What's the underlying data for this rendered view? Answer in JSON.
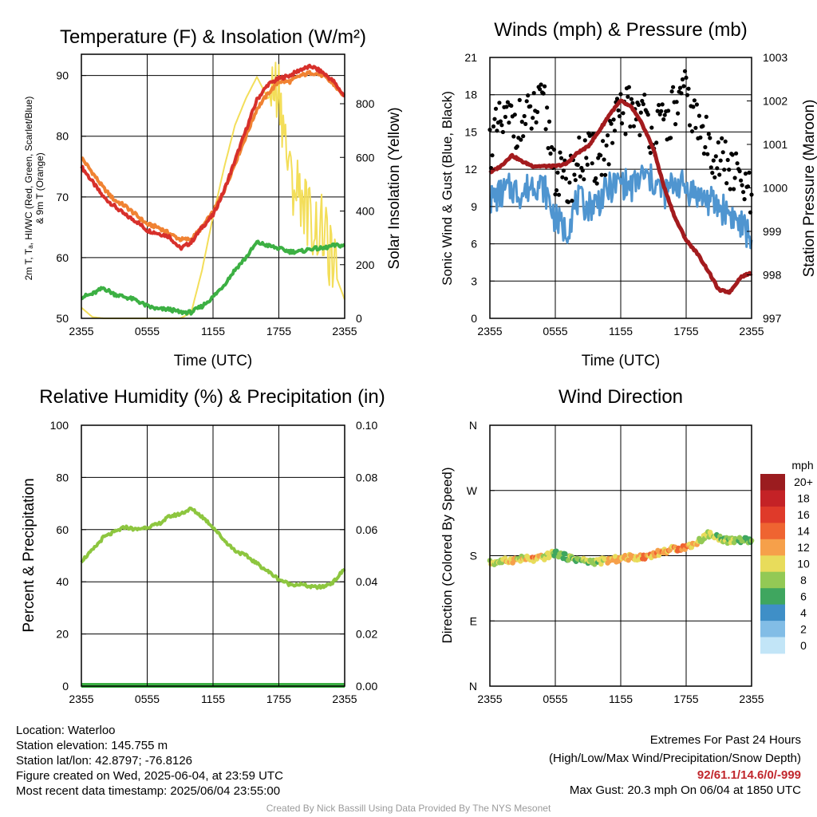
{
  "panels": {
    "temperature": {
      "title": "Temperature (F) & Insolation (W/m²)",
      "ylabel_line1": "2m T, Tₐ, HI/WC (Red, Green, Scarlet/Blue)",
      "ylabel_line2": "& 9m T (Orange)",
      "ylabel_right": "Solar Insolation (Yellow)",
      "xlabel": "Time (UTC)"
    },
    "winds": {
      "title": "Winds (mph) & Pressure (mb)",
      "ylabel": "Sonic Wind & Gust (Blue, Black)",
      "ylabel_right": "Station Pressure (Maroon)",
      "xlabel": "Time (UTC)"
    },
    "humidity": {
      "title": "Relative Humidity (%) & Precipitation (in)",
      "ylabel": "Percent & Precipitation"
    },
    "direction": {
      "title": "Wind Direction",
      "ylabel": "Direction (Colored By Speed)",
      "colorbar_unit": "mph",
      "colorbar_labels": [
        "20+",
        "18",
        "16",
        "14",
        "12",
        "10",
        "8",
        "6",
        "4",
        "2",
        "0"
      ],
      "colorbar_colors": [
        "#9b1c1f",
        "#c42226",
        "#df3a2a",
        "#ef6431",
        "#f6a04a",
        "#e8dc5b",
        "#93c955",
        "#3fa65f",
        "#3f8fc7",
        "#82bde6",
        "#c2e5f7"
      ]
    }
  },
  "station": {
    "location": "Location: Waterloo",
    "elevation": "Station elevation: 145.755 m",
    "latlon": "Station lat/lon: 42.8797; -76.8126",
    "created": "Figure created on Wed, 2025-06-04, at 23:59 UTC",
    "recent": "Most recent data timestamp: 2025/06/04 23:55:00"
  },
  "extremes": {
    "heading": "Extremes For Past 24 Hours",
    "legend": "(High/Low/Max Wind/Precipitation/Snow Depth)",
    "values": "92/61.1/14.6/0/-999",
    "gust": "Max Gust: 20.3 mph On 06/04 at 1850 UTC"
  },
  "credit": "Created By Nick Bassill Using Data Provided By The NYS Mesonet",
  "chart_data": [
    {
      "type": "line",
      "title": "Temperature (F) & Insolation (W/m²)",
      "xlabel": "Time (UTC)",
      "ylabel": "2m T, Tₐ, HI/WC (Red, Green, Scarlet/Blue) & 9m T (Orange)",
      "ylabel_right": "Solar Insolation (Yellow)",
      "x_ticks": [
        "2355",
        "0555",
        "1155",
        "1755",
        "2355"
      ],
      "y_ticks": [
        50,
        60,
        70,
        80,
        90
      ],
      "y_right_ticks": [
        0,
        200,
        400,
        600,
        800
      ],
      "ylim": [
        50,
        93.5
      ],
      "ylim_right": [
        0,
        800
      ],
      "x": [
        0,
        1,
        2,
        3,
        4,
        5,
        6,
        7,
        8,
        9,
        10,
        11,
        12,
        13,
        14,
        15,
        16,
        17,
        18,
        19,
        20,
        21,
        22,
        23,
        24
      ],
      "series": [
        {
          "color": "#d7302b",
          "axis": "left",
          "values": [
            75.0,
            72.5,
            70.0,
            68.5,
            67.0,
            66.0,
            64.5,
            64.0,
            63.5,
            61.5,
            62.5,
            65.0,
            67.0,
            71.0,
            76.0,
            81.0,
            86.0,
            88.5,
            89.5,
            90.0,
            91.0,
            91.5,
            90.5,
            89.0,
            86.5
          ]
        },
        {
          "color": "#f08232",
          "axis": "left",
          "values": [
            76.5,
            74.0,
            71.5,
            69.5,
            68.5,
            67.0,
            65.5,
            65.0,
            64.0,
            63.0,
            63.0,
            65.0,
            67.5,
            71.0,
            75.5,
            80.0,
            84.5,
            87.0,
            89.0,
            89.0,
            90.0,
            90.5,
            90.0,
            88.5,
            86.5
          ]
        },
        {
          "color": "#3cb043",
          "axis": "left",
          "values": [
            53.5,
            54.0,
            55.0,
            54.0,
            53.5,
            53.0,
            52.0,
            51.5,
            51.5,
            51.0,
            51.0,
            52.0,
            53.5,
            55.5,
            58.0,
            60.0,
            62.5,
            62.0,
            61.5,
            61.0,
            61.0,
            61.5,
            61.5,
            62.0,
            62.0
          ]
        },
        {
          "color": "#f3de5a",
          "axis": "right",
          "values": [
            40,
            5,
            0,
            0,
            0,
            0,
            0,
            0,
            0,
            0,
            20,
            180,
            380,
            560,
            720,
            820,
            900,
            820,
            870,
            520,
            470,
            350,
            330,
            180,
            70
          ]
        }
      ]
    },
    {
      "type": "line",
      "title": "Winds (mph) & Pressure (mb)",
      "xlabel": "Time (UTC)",
      "ylabel": "Sonic Wind & Gust (Blue, Black)",
      "ylabel_right": "Station Pressure (Maroon)",
      "x_ticks": [
        "2355",
        "0555",
        "1155",
        "1755",
        "2355"
      ],
      "y_ticks": [
        0,
        3,
        6,
        9,
        12,
        15,
        18,
        21
      ],
      "y_right_ticks": [
        997,
        998,
        999,
        1000,
        1001,
        1002,
        1003
      ],
      "ylim": [
        0,
        21
      ],
      "ylim_right": [
        997,
        1003
      ],
      "x": [
        0,
        1,
        2,
        3,
        4,
        5,
        6,
        7,
        8,
        9,
        10,
        11,
        12,
        13,
        14,
        15,
        16,
        17,
        18,
        19,
        20,
        21,
        22,
        23,
        24
      ],
      "series": [
        {
          "color": "#4f95d0",
          "axis": "left",
          "style": "line",
          "values": [
            9.5,
            10.0,
            10.5,
            10.0,
            11.0,
            10.5,
            8.0,
            7.0,
            9.5,
            9.0,
            9.5,
            10.5,
            11.0,
            10.5,
            11.5,
            11.0,
            10.0,
            11.0,
            10.5,
            10.0,
            9.5,
            9.0,
            8.5,
            7.5,
            6.5
          ]
        },
        {
          "color": "#000000",
          "axis": "left",
          "style": "dots",
          "values": [
            14.0,
            15.5,
            16.0,
            15.5,
            16.5,
            17.0,
            12.0,
            10.5,
            12.5,
            13.0,
            12.5,
            14.0,
            16.5,
            17.0,
            16.5,
            15.0,
            15.5,
            17.0,
            18.0,
            15.5,
            14.0,
            13.0,
            12.0,
            11.0,
            9.5
          ]
        },
        {
          "color": "#a31b1e",
          "axis": "right",
          "style": "line",
          "values": [
            1000.35,
            1000.5,
            1000.75,
            1000.6,
            1000.5,
            1000.5,
            1000.5,
            1000.55,
            1000.8,
            1000.95,
            1001.3,
            1001.7,
            1002.0,
            1001.85,
            1001.45,
            1000.9,
            1000.0,
            999.3,
            998.8,
            998.5,
            998.1,
            997.65,
            997.6,
            997.95,
            998.05
          ]
        }
      ]
    },
    {
      "type": "line",
      "title": "Relative Humidity (%) & Precipitation (in)",
      "ylabel": "Percent & Precipitation",
      "x_ticks": [
        "2355",
        "0555",
        "1155",
        "1755",
        "2355"
      ],
      "y_ticks": [
        0,
        20,
        40,
        60,
        80,
        100
      ],
      "y_right_ticks": [
        "0.00",
        "0.02",
        "0.04",
        "0.06",
        "0.08",
        "0.10"
      ],
      "ylim": [
        0,
        100
      ],
      "ylim_right": [
        0,
        0.1
      ],
      "x": [
        0,
        1,
        2,
        3,
        4,
        5,
        6,
        7,
        8,
        9,
        10,
        11,
        12,
        13,
        14,
        15,
        16,
        17,
        18,
        19,
        20,
        21,
        22,
        23,
        24
      ],
      "series": [
        {
          "color": "#8dc63f",
          "axis": "left",
          "values": [
            48,
            52,
            57,
            59,
            61,
            60,
            61,
            62,
            65,
            66,
            68,
            65,
            61,
            56,
            52,
            50,
            47,
            44,
            41,
            39,
            39,
            38,
            38,
            40,
            45
          ]
        },
        {
          "color": "#3cb043",
          "axis": "right",
          "values": [
            0,
            0,
            0,
            0,
            0,
            0,
            0,
            0,
            0,
            0,
            0,
            0,
            0,
            0,
            0,
            0,
            0,
            0,
            0,
            0,
            0,
            0,
            0,
            0,
            0
          ]
        }
      ]
    },
    {
      "type": "scatter",
      "title": "Wind Direction",
      "ylabel": "Direction (Colored By Speed)",
      "x_ticks": [
        "2355",
        "0555",
        "1155",
        "1755",
        "2355"
      ],
      "y_ticks": [
        "N",
        "E",
        "S",
        "W",
        "N"
      ],
      "ylim": [
        0,
        360
      ],
      "x": [
        0,
        1,
        2,
        3,
        4,
        5,
        6,
        7,
        8,
        9,
        10,
        11,
        12,
        13,
        14,
        15,
        16,
        17,
        18,
        19,
        20,
        21,
        22,
        23,
        24
      ],
      "directions": [
        170,
        172,
        174,
        176,
        175,
        178,
        184,
        178,
        175,
        172,
        172,
        174,
        176,
        178,
        178,
        182,
        186,
        190,
        192,
        198,
        210,
        205,
        200,
        202,
        200
      ],
      "speeds": [
        9,
        10,
        11,
        10,
        12,
        10,
        7,
        6,
        9,
        8,
        9,
        11,
        12,
        10,
        13,
        12,
        11,
        12,
        13,
        10,
        9,
        8,
        8,
        7,
        6
      ]
    }
  ]
}
